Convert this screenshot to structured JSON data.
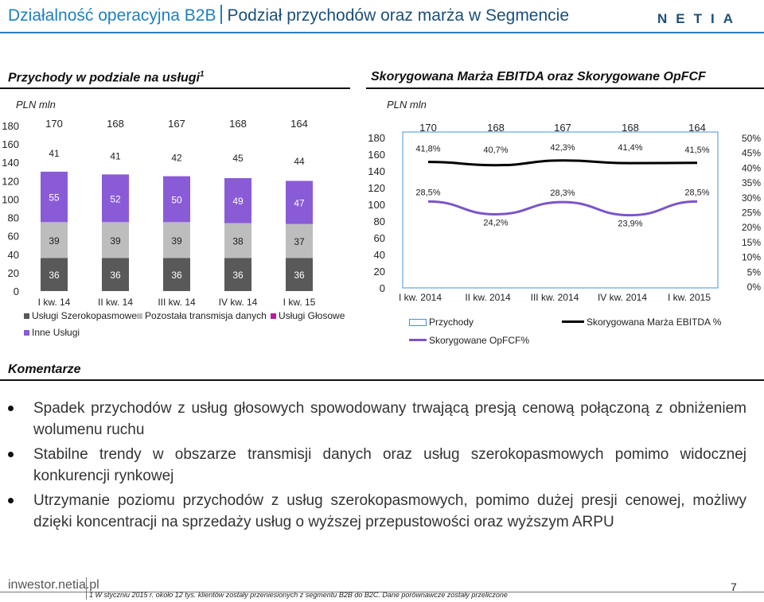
{
  "header": {
    "title": "Działalność operacyjna B2B",
    "subtitle": "Podział przychodów oraz marża w Segmencie",
    "logo": "NETIA"
  },
  "colors": {
    "brand": "#1f7fc0",
    "voice": "#8a5bd6",
    "broadband": "#595959",
    "transmission": "#bdbdbd",
    "other": "#ffffff",
    "ebitda_line": "#000000",
    "opfcf_line": "#7b55c9",
    "revenue": "#4a90d9"
  },
  "chart_data": [
    {
      "type": "bar",
      "stacked": true,
      "title": "Przychody w podziale na usługi",
      "title_superscript": "1",
      "ylabel": "PLN mln",
      "ylim": [
        0,
        180
      ],
      "yticks": [
        "0",
        "20",
        "40",
        "60",
        "80",
        "100",
        "120",
        "140",
        "160",
        "180"
      ],
      "categories": [
        "I kw. 14",
        "II kw. 14",
        "III kw. 14",
        "IV kw. 14",
        "I kw. 15"
      ],
      "series": [
        {
          "name": "Usługi Szerokopasmowe",
          "values": [
            36,
            36,
            36,
            36,
            36
          ],
          "labels": [
            "36",
            "36",
            "36",
            "36",
            "36"
          ],
          "color": "#595959",
          "text_color": "#ffffff"
        },
        {
          "name": "Pozostała transmisja danych",
          "values": [
            39,
            39,
            39,
            38,
            37
          ],
          "labels": [
            "39",
            "39",
            "39",
            "38",
            "37"
          ],
          "color": "#bdbdbd",
          "text_color": "#222222"
        },
        {
          "name": "Usługi Głosowe",
          "values": [
            55,
            52,
            50,
            49,
            47
          ],
          "labels": [
            "55",
            "52",
            "50",
            "49",
            "47"
          ],
          "color": "#8a5bd6",
          "text_color": "#ffffff"
        },
        {
          "name": "Inne Usługi",
          "values": [
            41,
            41,
            42,
            45,
            44
          ],
          "labels": [
            "41",
            "41",
            "42",
            "45",
            "44"
          ],
          "color": "#ffffff",
          "text_color": "#222222"
        }
      ],
      "totals": [
        "170",
        "168",
        "167",
        "168",
        "164"
      ],
      "legend": [
        "Usługi Szerokopasmowe",
        "Pozostała transmisja danych",
        "Usługi Głosowe",
        "Inne Usługi"
      ],
      "legend_placement": "bottom"
    },
    {
      "type": "line",
      "title": "Skorygowana Marża EBITDA oraz Skorygowane OpFCF",
      "ylabel": "PLN mln",
      "ylim": [
        0,
        180
      ],
      "y2lim": [
        0,
        50
      ],
      "yticks": [
        "0",
        "20",
        "40",
        "60",
        "80",
        "100",
        "120",
        "140",
        "160",
        "180"
      ],
      "y2ticks": [
        "0%",
        "5%",
        "10%",
        "15%",
        "20%",
        "25%",
        "30%",
        "35%",
        "40%",
        "45%",
        "50%"
      ],
      "categories": [
        "I kw. 2014",
        "II kw. 2014",
        "III kw. 2014",
        "IV kw. 2014",
        "I kw. 2015"
      ],
      "revenue": {
        "name": "Przychody",
        "values": [
          170,
          168,
          167,
          168,
          164
        ],
        "labels": [
          "170",
          "168",
          "167",
          "168",
          "164"
        ]
      },
      "series": [
        {
          "name": "Skorygowana Marża EBITDA %",
          "values": [
            41.8,
            40.7,
            42.3,
            41.4,
            41.5
          ],
          "labels": [
            "41,8%",
            "40,7%",
            "42,3%",
            "41,4%",
            "41,5%"
          ],
          "color": "#000000"
        },
        {
          "name": "Skorygowane OpFCF%",
          "values": [
            28.5,
            24.2,
            28.3,
            23.9,
            28.5
          ],
          "labels": [
            "28,5%",
            "24,2%",
            "28,3%",
            "23,9%",
            "28,5%"
          ],
          "color": "#7b55c9"
        }
      ],
      "legend": [
        "Przychody",
        "Skorygowana Marża EBITDA %",
        "Skorygowane OpFCF%"
      ],
      "legend_placement": "bottom"
    }
  ],
  "comments": {
    "title": "Komentarze",
    "bullets": [
      "Spadek przychodów z usług głosowych spowodowany trwającą presją cenową połączoną z obniżeniem wolumenu ruchu",
      "Stabilne trendy w obszarze transmisji danych oraz usług szerokopasmowych pomimo widocznej konkurencji rynkowej",
      "Utrzymanie poziomu przychodów z usług szerokopasmowych, pomimo dużej presji cenowej, możliwy dzięki koncentracji na sprzedaży usług o wyższej przepustowości oraz wyższym ARPU"
    ]
  },
  "footer": {
    "site": "inwestor.netia.pl",
    "note": "1 W styczniu 2015 r. około 12 tys. klientów zostały przeniesionych z segmentu B2B do B2C. Dane porównawcze zostały przeliczone",
    "page": "7"
  }
}
